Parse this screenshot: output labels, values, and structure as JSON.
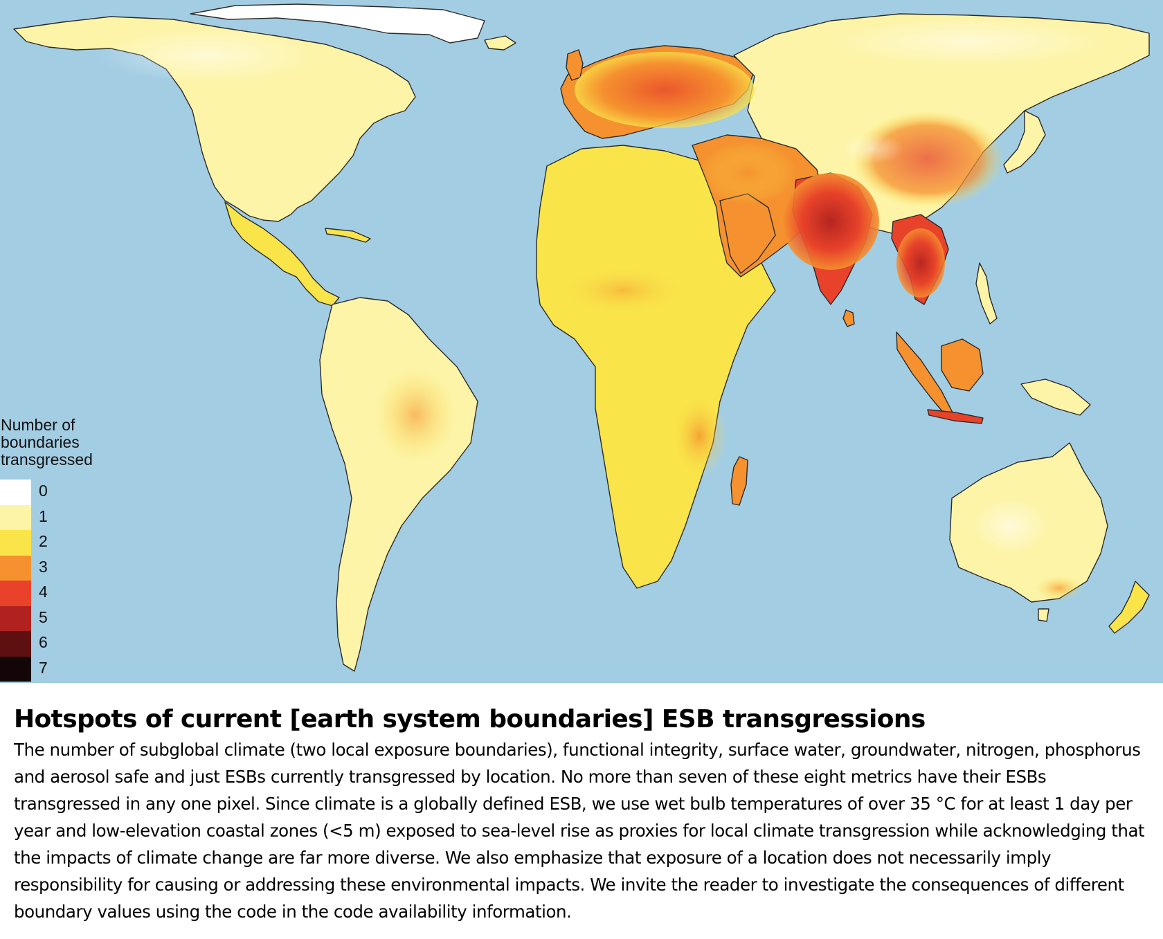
{
  "map": {
    "ocean_color": "#a3cde3",
    "outline_color": "#2a2a2a",
    "regions": [
      {
        "name": "north-america",
        "level": 1
      },
      {
        "name": "greenland",
        "level": 0
      },
      {
        "name": "central-america",
        "level": 2
      },
      {
        "name": "south-america",
        "level": 1
      },
      {
        "name": "europe",
        "level": 3
      },
      {
        "name": "africa",
        "level": 2
      },
      {
        "name": "asia",
        "level": 1
      },
      {
        "name": "middle-east",
        "level": 3
      },
      {
        "name": "india",
        "level": 4
      },
      {
        "name": "southeast-asia",
        "level": 4
      },
      {
        "name": "australia",
        "level": 1
      },
      {
        "name": "new-zealand",
        "level": 2
      }
    ]
  },
  "legend": {
    "title": "Number of boundaries transgressed",
    "items": [
      {
        "label": "0",
        "color": "#ffffff"
      },
      {
        "label": "1",
        "color": "#fdf4a8"
      },
      {
        "label": "2",
        "color": "#f9e44a"
      },
      {
        "label": "3",
        "color": "#f5922f"
      },
      {
        "label": "4",
        "color": "#e8432a"
      },
      {
        "label": "5",
        "color": "#b0211f"
      },
      {
        "label": "6",
        "color": "#5e1010"
      },
      {
        "label": "7",
        "color": "#130606"
      }
    ]
  },
  "caption": {
    "title": "Hotspots of current [earth system boundaries] ESB transgressions",
    "body": "The number of subglobal climate (two local exposure boundaries), functional integrity, surface water, groundwater, nitrogen, phosphorus and aerosol safe and just ESBs currently transgressed by location. No more than seven of these eight metrics have their ESBs transgressed in any one pixel. Since climate is a globally defined ESB, we use wet bulb temperatures of over 35 °C for at least 1 day per year and low-elevation coastal zones (<5 m) exposed to sea-level rise as proxies for local climate transgression while acknowledging that the impacts of climate change are far more diverse. We also emphasize that exposure of a location does not necessarily imply responsibility for causing or addressing these environmental impacts. We invite the reader to investigate the consequences of different boundary values using the code in the code availability information."
  }
}
